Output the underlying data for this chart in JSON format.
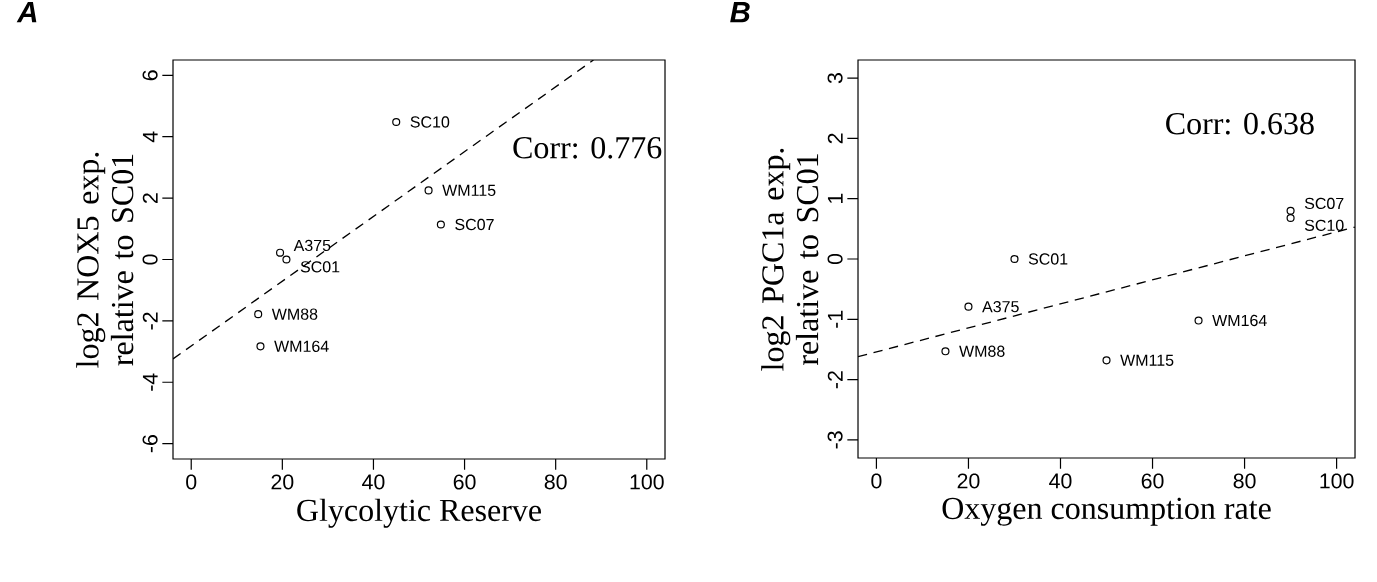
{
  "chart_data": [
    {
      "type": "scatter",
      "title": "A",
      "xlabel": "Glycolytic Reserve",
      "ylabel": "log2 NOX5 exp. relative to SC01",
      "xlim": [
        -4,
        104
      ],
      "ylim": [
        -6.5,
        6.5
      ],
      "xticks": [
        0,
        20,
        40,
        60,
        80,
        100
      ],
      "yticks": [
        -6,
        -4,
        -2,
        0,
        2,
        4,
        6
      ],
      "series": [
        {
          "marker": "circle",
          "color": "#000000",
          "x": [
            45,
            52.1,
            54.8,
            19.5,
            20.9,
            14.7,
            15.2
          ],
          "values": [
            4.48,
            2.25,
            1.14,
            0.22,
            0.0,
            -1.78,
            -2.83
          ]
        },
        {
          "type": "line",
          "color": "#000000",
          "line_style": "dashed",
          "x": [
            -4,
            88.3
          ],
          "values": [
            -3.24,
            6.5
          ]
        }
      ],
      "annotations": [
        {
          "text": "SC10",
          "x": 45,
          "y": 4.48
        },
        {
          "text": "WM115",
          "x": 52.1,
          "y": 2.25
        },
        {
          "text": "SC07",
          "x": 54.8,
          "y": 1.14
        },
        {
          "text": "A375",
          "x": 19.5,
          "y": 0.22
        },
        {
          "text": "SC01",
          "x": 20.9,
          "y": 0.0
        },
        {
          "text": "WM88",
          "x": 14.7,
          "y": -1.78
        },
        {
          "text": "WM164",
          "x": 15.2,
          "y": -2.83
        },
        "Corr: 0.776"
      ]
    },
    {
      "type": "scatter",
      "title": "B",
      "xlabel": "Oxygen consumption rate",
      "ylabel": "log2 PGC1a exp. relative to SC01",
      "xlim": [
        -4,
        104
      ],
      "ylim": [
        -3.3,
        3.3
      ],
      "xticks": [
        0,
        20,
        40,
        60,
        80,
        100
      ],
      "yticks": [
        -3,
        -2,
        -1,
        0,
        1,
        2,
        3
      ],
      "series": [
        {
          "marker": "circle",
          "color": "#000000",
          "x": [
            30,
            20,
            15,
            50,
            70,
            90,
            90
          ],
          "values": [
            0.0,
            -0.79,
            -1.53,
            -1.68,
            -1.02,
            0.8,
            0.68
          ]
        },
        {
          "type": "line",
          "color": "#000000",
          "line_style": "dashed",
          "x": [
            -4,
            104
          ],
          "values": [
            -1.62,
            0.53
          ]
        }
      ],
      "annotations": [
        {
          "text": "SC01",
          "x": 30,
          "y": 0.0
        },
        {
          "text": "A375",
          "x": 20,
          "y": -0.79
        },
        {
          "text": "WM88",
          "x": 15,
          "y": -1.53
        },
        {
          "text": "WM115",
          "x": 50,
          "y": -1.68
        },
        {
          "text": "WM164",
          "x": 70,
          "y": -1.02
        },
        {
          "text": "SC07",
          "x": 90,
          "y": 0.8
        },
        {
          "text": "SC10",
          "x": 90,
          "y": 0.68
        },
        "Corr: 0.638"
      ]
    }
  ]
}
